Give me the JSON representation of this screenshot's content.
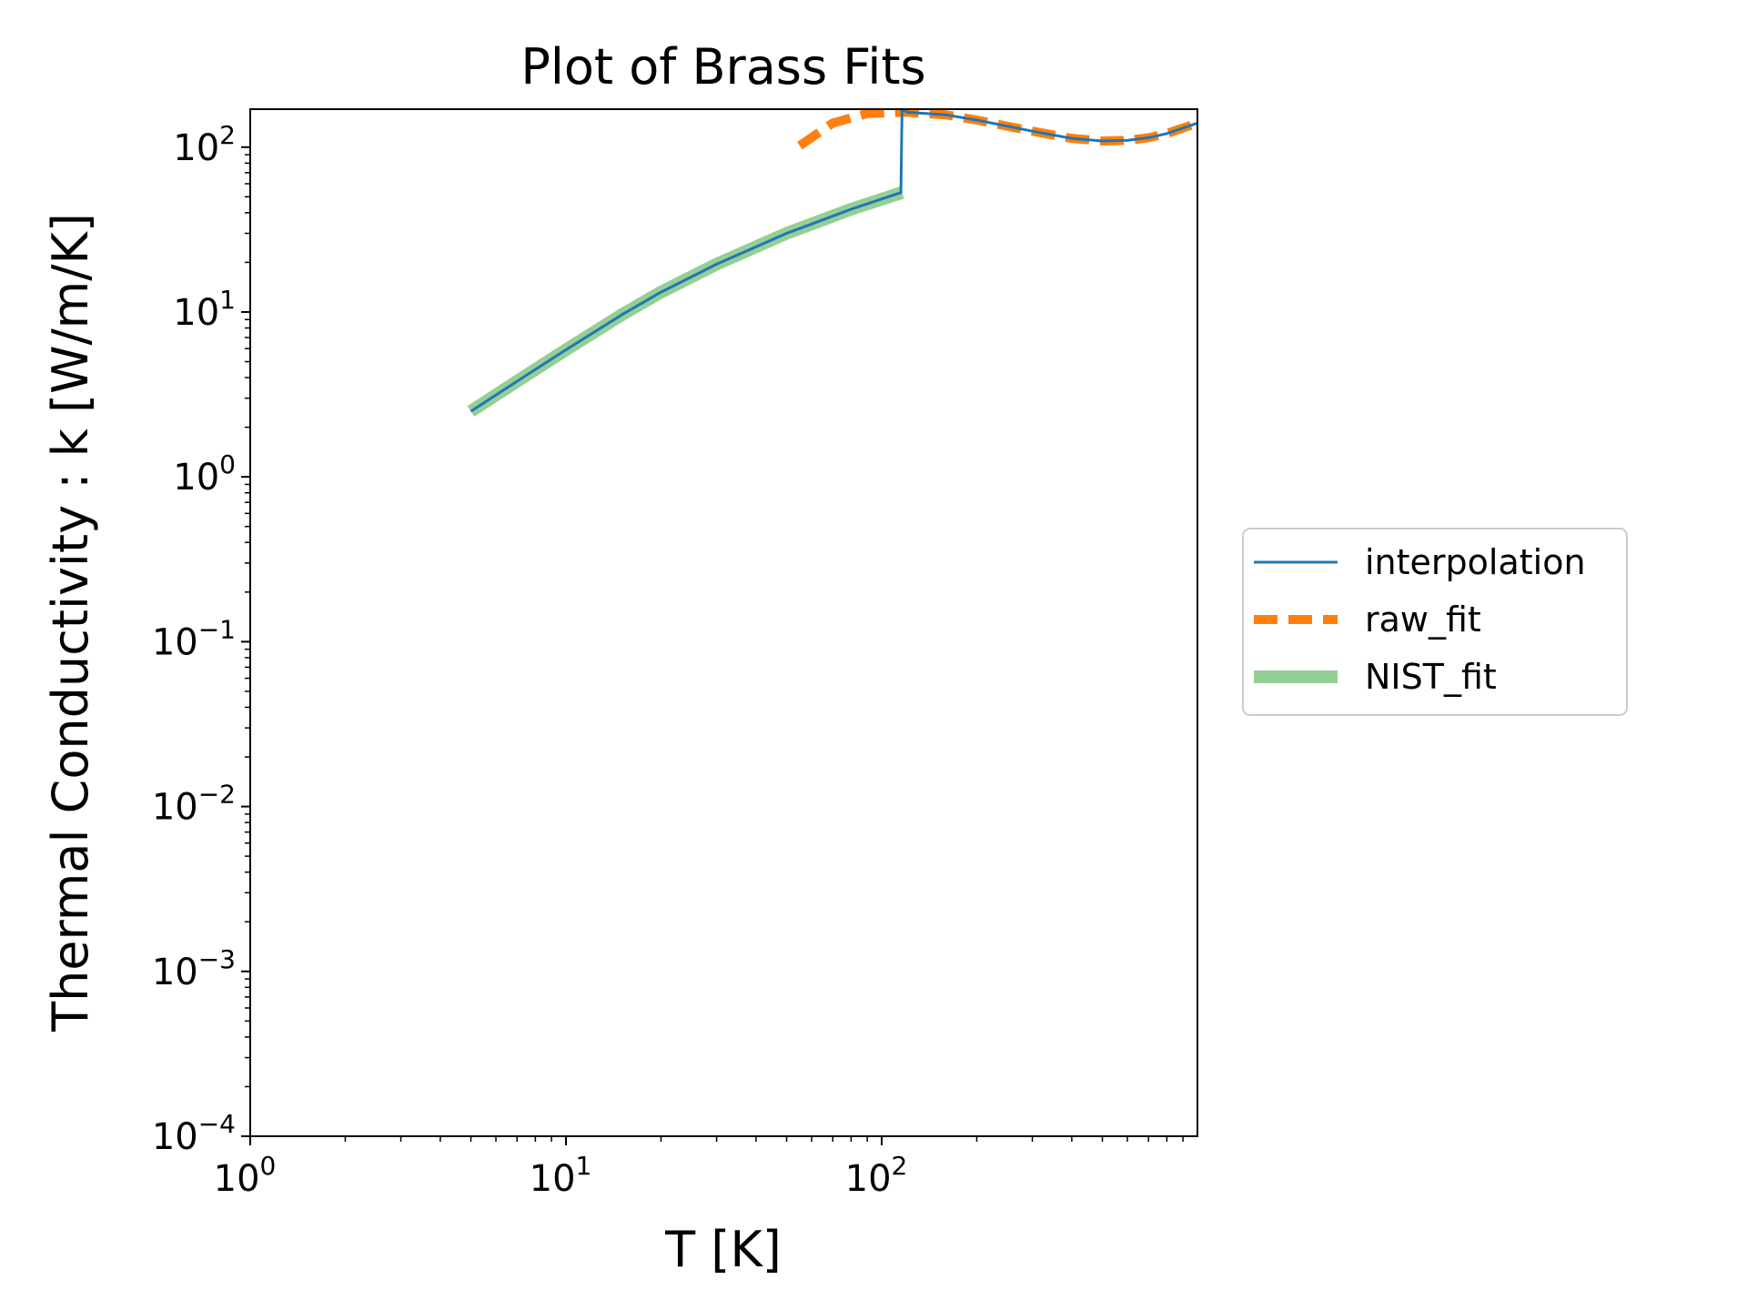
{
  "chart_data": {
    "type": "line",
    "title": "Plot of Brass Fits",
    "xlabel": "T [K]",
    "ylabel": "Thermal Conductivity : k [W/m/K]",
    "xscale": "log",
    "yscale": "log",
    "xlim": [
      1,
      1000
    ],
    "ylim": [
      0.0001,
      170
    ],
    "grid": false,
    "legend_position": "outside-right",
    "x_ticks": [
      {
        "value": 1,
        "base": "10",
        "exp": "0"
      },
      {
        "value": 10,
        "base": "10",
        "exp": "1"
      },
      {
        "value": 100,
        "base": "10",
        "exp": "2"
      }
    ],
    "y_ticks": [
      {
        "value": 0.0001,
        "base": "10",
        "exp": "−4"
      },
      {
        "value": 0.001,
        "base": "10",
        "exp": "−3"
      },
      {
        "value": 0.01,
        "base": "10",
        "exp": "−2"
      },
      {
        "value": 0.1,
        "base": "10",
        "exp": "−1"
      },
      {
        "value": 1,
        "base": "10",
        "exp": "0"
      },
      {
        "value": 10,
        "base": "10",
        "exp": "1"
      },
      {
        "value": 100,
        "base": "10",
        "exp": "2"
      }
    ],
    "series": [
      {
        "name": "NIST_fit",
        "color": "#2ca02c",
        "style": "solid-thick-translucent",
        "x": [
          5,
          7,
          10,
          15,
          20,
          30,
          50,
          80,
          116
        ],
        "y": [
          2.5,
          3.8,
          5.9,
          9.6,
          13.2,
          19.5,
          30,
          42,
          53
        ]
      },
      {
        "name": "raw_fit",
        "color": "#ff7f0e",
        "style": "dashed",
        "x": [
          55,
          70,
          90,
          120,
          160,
          200,
          300,
          400,
          500,
          600,
          700,
          800,
          1000
        ],
        "y": [
          102,
          140,
          160,
          163,
          157,
          146,
          125,
          113,
          109,
          110,
          114,
          121,
          140
        ]
      },
      {
        "name": "interpolation",
        "color": "#1f77b4",
        "style": "solid",
        "x": [
          5,
          7,
          10,
          15,
          20,
          30,
          50,
          80,
          115,
          116,
          120,
          160,
          200,
          300,
          400,
          500,
          600,
          700,
          800,
          1000
        ],
        "y": [
          2.5,
          3.8,
          5.9,
          9.6,
          13.2,
          19.5,
          30,
          42,
          53,
          170,
          163,
          157,
          146,
          125,
          113,
          109,
          110,
          114,
          121,
          140
        ]
      }
    ],
    "legend": [
      {
        "name": "interpolation",
        "color": "#1f77b4",
        "style": "solid"
      },
      {
        "name": "raw_fit",
        "color": "#ff7f0e",
        "style": "dashed"
      },
      {
        "name": "NIST_fit",
        "color": "#2ca02c",
        "style": "solid-thick-translucent"
      }
    ]
  }
}
